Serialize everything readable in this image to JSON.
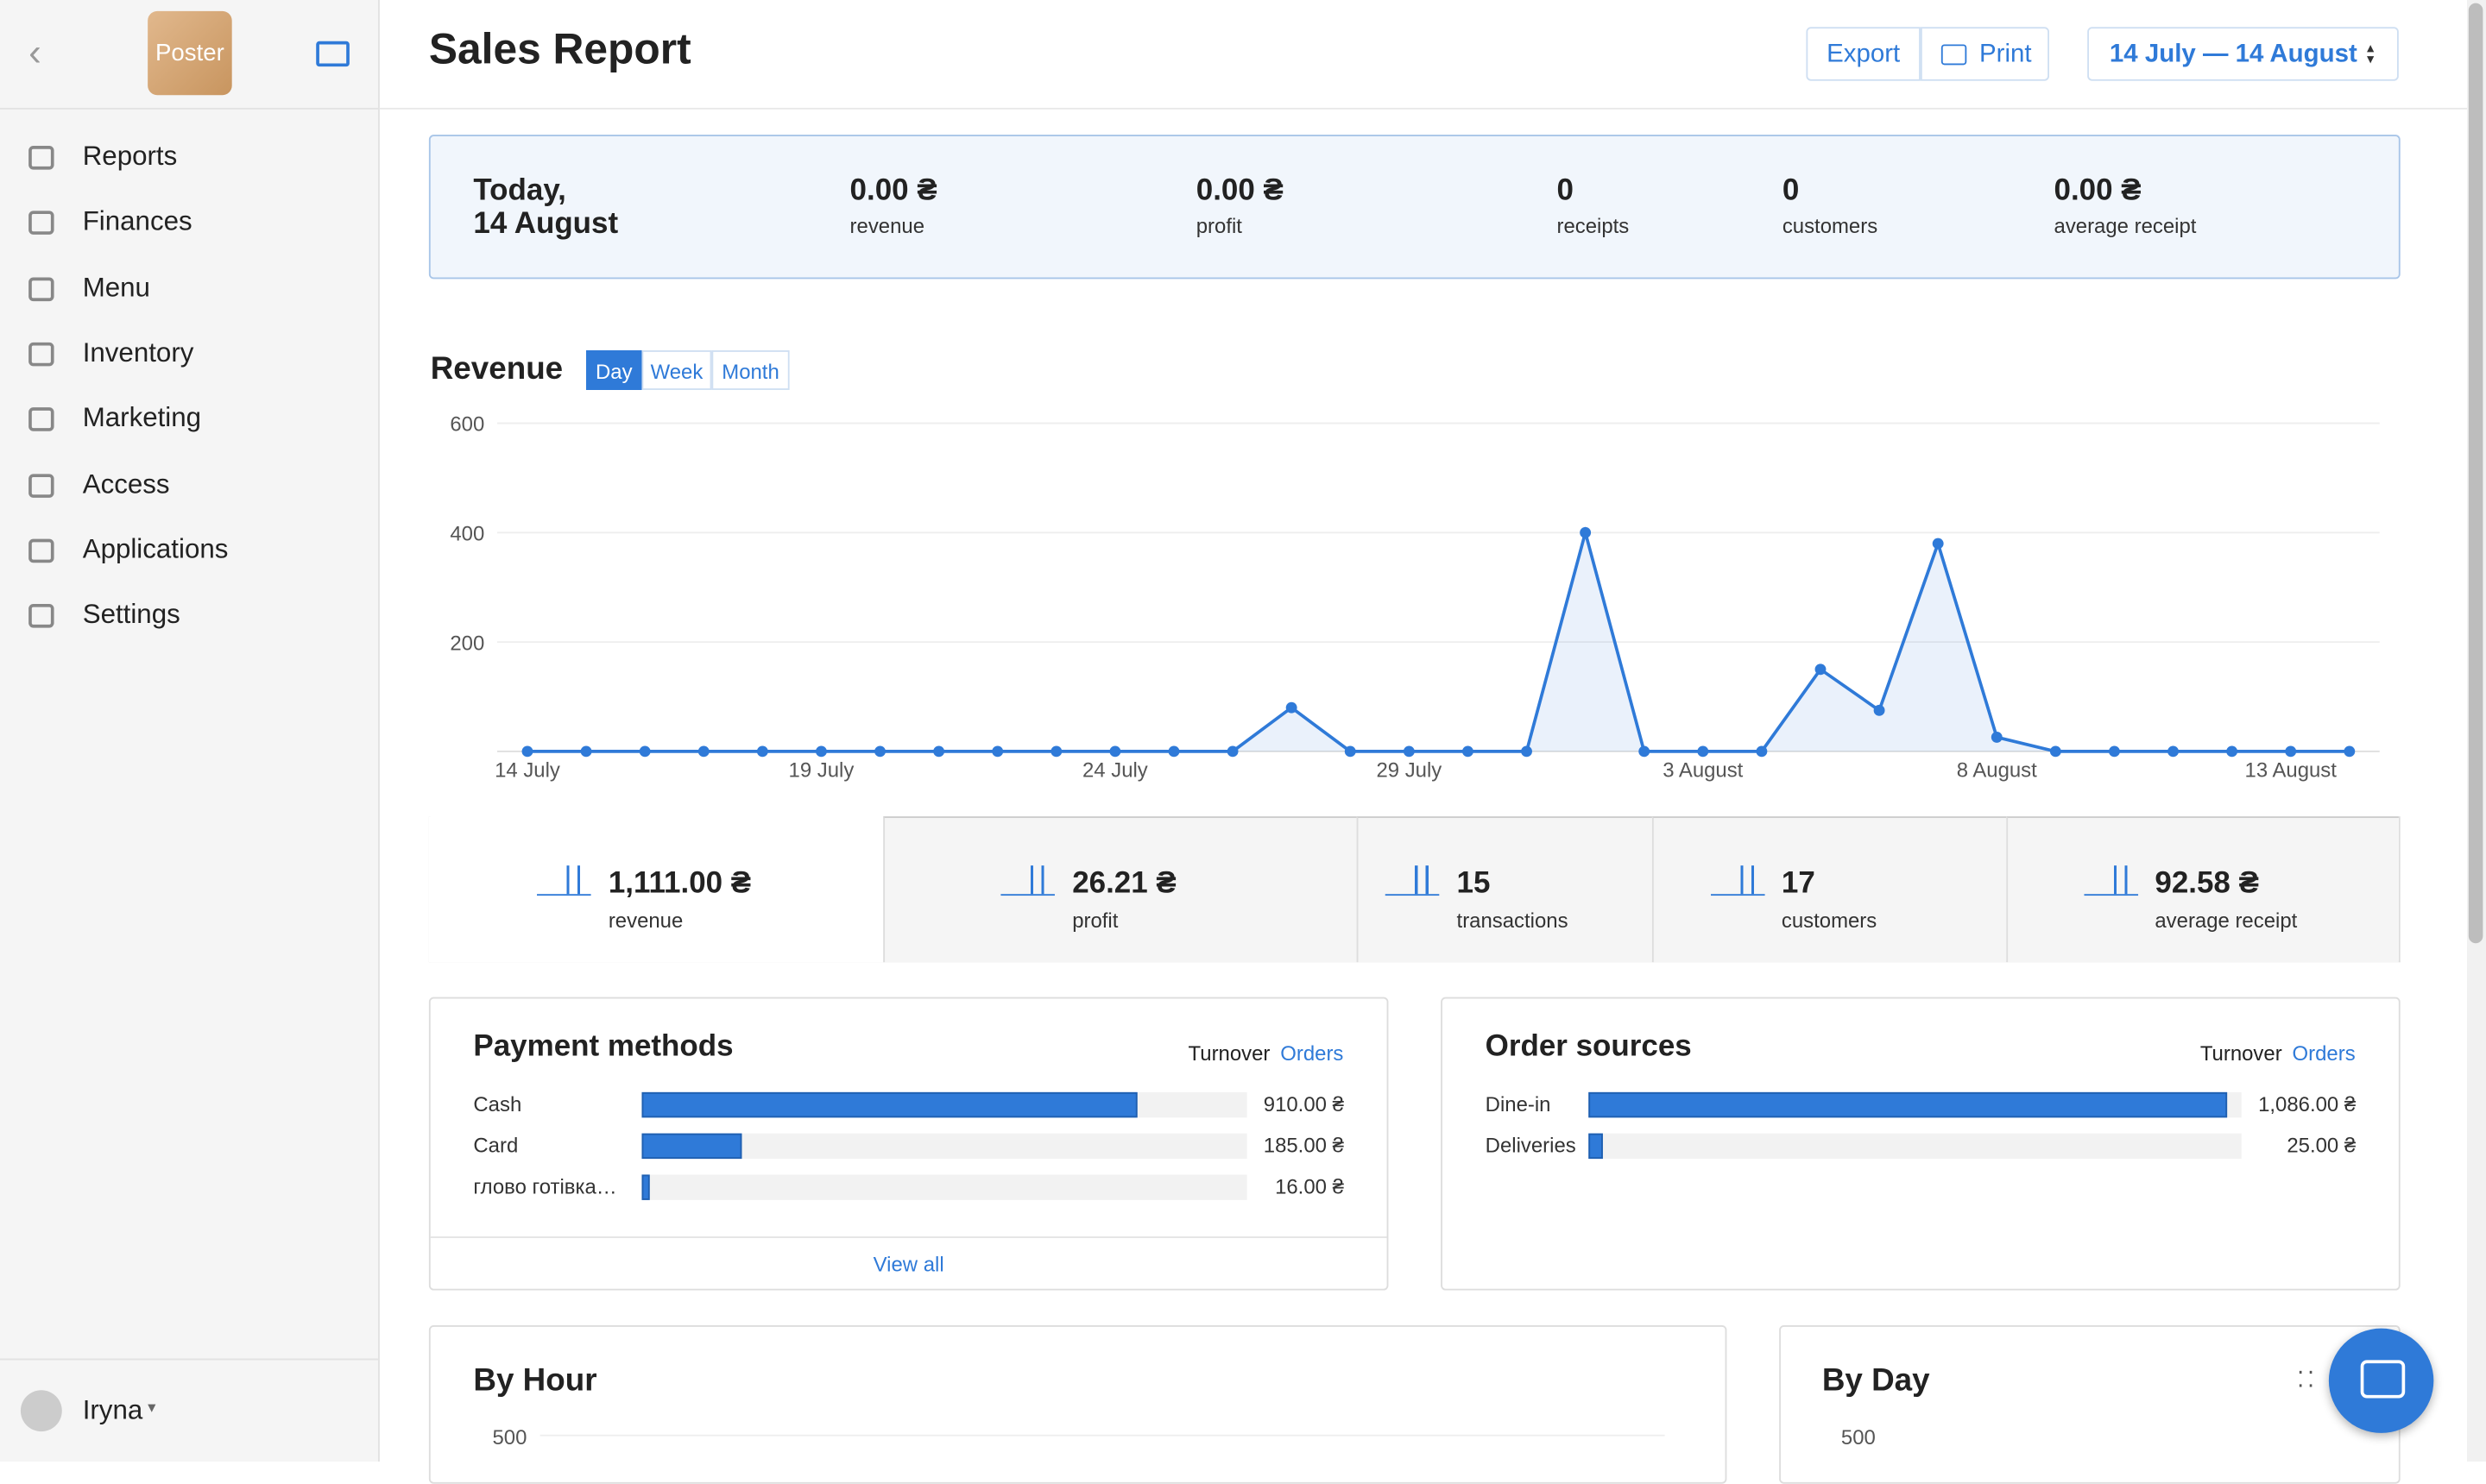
{
  "sidebar": {
    "logo": "Poster",
    "nav": [
      "Reports",
      "Finances",
      "Menu",
      "Inventory",
      "Marketing",
      "Access",
      "Applications",
      "Settings"
    ],
    "user": "Iryna"
  },
  "header": {
    "title": "Sales Report",
    "export": "Export",
    "print": "Print",
    "date_range": "14 July — 14 August"
  },
  "today": {
    "date_line1": "Today,",
    "date_line2": "14 August",
    "stats": [
      {
        "value": "0.00 ₴",
        "label": "revenue"
      },
      {
        "value": "0.00 ₴",
        "label": "profit"
      },
      {
        "value": "0",
        "label": "receipts"
      },
      {
        "value": "0",
        "label": "customers"
      },
      {
        "value": "0.00 ₴",
        "label": "average receipt"
      }
    ]
  },
  "revenue": {
    "title": "Revenue",
    "periods": [
      "Day",
      "Week",
      "Month"
    ],
    "chart_data": {
      "type": "line",
      "color": "#2f7ad8",
      "categories": [
        "14 July",
        null,
        null,
        null,
        null,
        "19 July",
        null,
        null,
        null,
        null,
        "24 July",
        null,
        null,
        null,
        null,
        "29 July",
        null,
        null,
        null,
        null,
        "3 August",
        null,
        null,
        null,
        null,
        "8 August",
        null,
        null,
        null,
        null,
        "13 August",
        null
      ],
      "values": [
        0,
        0,
        0,
        0,
        0,
        0,
        0,
        0,
        0,
        0,
        0,
        0,
        0,
        80,
        0,
        0,
        0,
        0,
        400,
        0,
        0,
        0,
        150,
        75,
        380,
        26,
        0,
        0,
        0,
        0,
        0,
        0
      ],
      "ylim": [
        0,
        600
      ],
      "yticks": [
        200,
        400,
        600
      ],
      "grid": true
    }
  },
  "totals": [
    {
      "value": "1,111.00 ₴",
      "label": "revenue"
    },
    {
      "value": "26.21 ₴",
      "label": "profit"
    },
    {
      "value": "15",
      "label": "transactions"
    },
    {
      "value": "17",
      "label": "customers"
    },
    {
      "value": "92.58 ₴",
      "label": "average receipt"
    }
  ],
  "payment_methods": {
    "title": "Payment methods",
    "tabs": [
      "Turnover",
      "Orders"
    ],
    "footer": "View all",
    "items": [
      {
        "name": "Cash",
        "value": 910,
        "label": "910.00 ₴"
      },
      {
        "name": "Card",
        "value": 185,
        "label": "185.00 ₴"
      },
      {
        "name": "глово готівка…",
        "value": 16,
        "label": "16.00 ₴"
      }
    ]
  },
  "order_sources": {
    "title": "Order sources",
    "tabs": [
      "Turnover",
      "Orders"
    ],
    "items": [
      {
        "name": "Dine-in",
        "value": 1086,
        "label": "1,086.00 ₴"
      },
      {
        "name": "Deliveries",
        "value": 25,
        "label": "25.00 ₴"
      }
    ]
  },
  "by_hour": {
    "title": "By Hour",
    "tick": "500"
  },
  "by_day": {
    "title": "By Day",
    "tick": "500"
  }
}
